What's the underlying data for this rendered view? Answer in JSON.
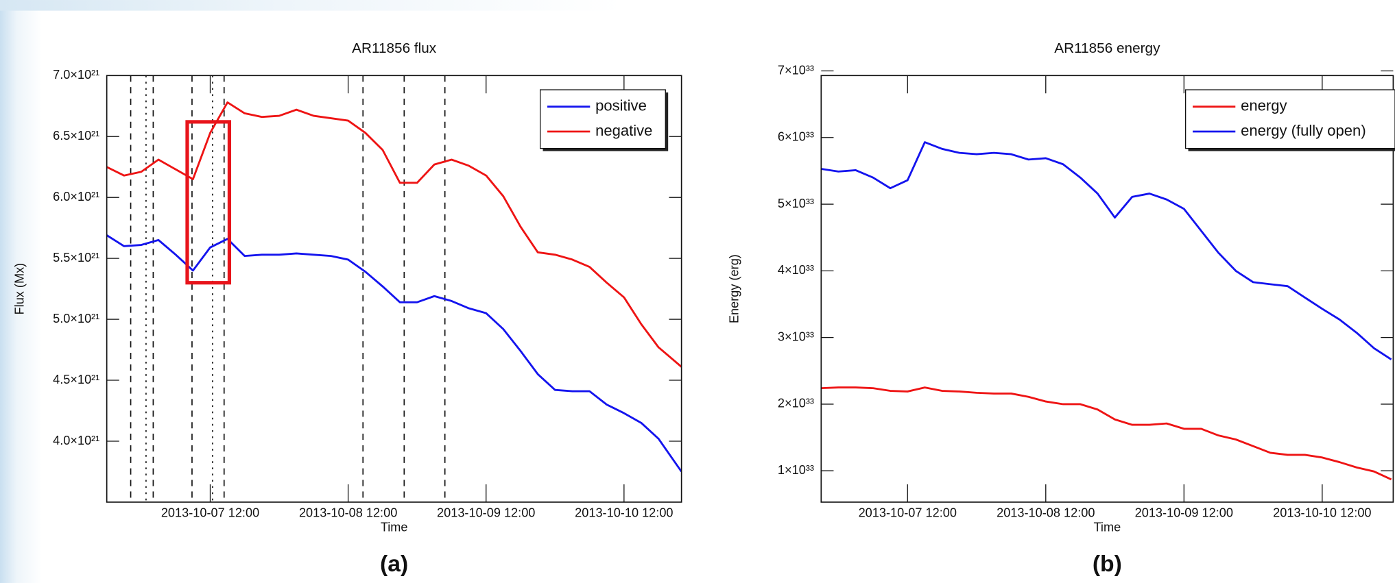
{
  "chart_data": [
    {
      "type": "line",
      "title": "AR11856 flux",
      "xlabel": "Time",
      "ylabel": "Flux (Mx)",
      "panel_label": "(a)",
      "x": [
        "2013-10-06 18:00",
        "2013-10-06 21:00",
        "2013-10-07 00:00",
        "2013-10-07 03:00",
        "2013-10-07 06:00",
        "2013-10-07 09:00",
        "2013-10-07 12:00",
        "2013-10-07 15:00",
        "2013-10-07 18:00",
        "2013-10-07 21:00",
        "2013-10-08 00:00",
        "2013-10-08 03:00",
        "2013-10-08 06:00",
        "2013-10-08 09:00",
        "2013-10-08 12:00",
        "2013-10-08 15:00",
        "2013-10-08 18:00",
        "2013-10-08 21:00",
        "2013-10-09 00:00",
        "2013-10-09 03:00",
        "2013-10-09 06:00",
        "2013-10-09 09:00",
        "2013-10-09 12:00",
        "2013-10-09 15:00",
        "2013-10-09 18:00",
        "2013-10-09 21:00",
        "2013-10-10 00:00",
        "2013-10-10 03:00",
        "2013-10-10 06:00",
        "2013-10-10 09:00",
        "2013-10-10 12:00",
        "2013-10-10 15:00",
        "2013-10-10 18:00",
        "2013-10-10 22:00"
      ],
      "series": [
        {
          "name": "positive",
          "color": "#1414ee",
          "values": [
            5.69e+21,
            5.6e+21,
            5.61e+21,
            5.65e+21,
            5.53e+21,
            5.4e+21,
            5.59e+21,
            5.66e+21,
            5.52e+21,
            5.53e+21,
            5.53e+21,
            5.54e+21,
            5.53e+21,
            5.52e+21,
            5.49e+21,
            5.39e+21,
            5.27e+21,
            5.14e+21,
            5.14e+21,
            5.19e+21,
            5.15e+21,
            5.09e+21,
            5.05e+21,
            4.92e+21,
            4.74e+21,
            4.55e+21,
            4.42e+21,
            4.41e+21,
            4.41e+21,
            4.3e+21,
            4.23e+21,
            4.15e+21,
            4.02e+21,
            3.75e+21
          ]
        },
        {
          "name": "negative",
          "color": "#ee1414",
          "values": [
            6.25e+21,
            6.18e+21,
            6.21e+21,
            6.31e+21,
            6.23e+21,
            6.15e+21,
            6.53e+21,
            6.78e+21,
            6.69e+21,
            6.66e+21,
            6.67e+21,
            6.72e+21,
            6.67e+21,
            6.65e+21,
            6.63e+21,
            6.53e+21,
            6.39e+21,
            6.12e+21,
            6.12e+21,
            6.27e+21,
            6.31e+21,
            6.26e+21,
            6.18e+21,
            6.01e+21,
            5.76e+21,
            5.55e+21,
            5.53e+21,
            5.49e+21,
            5.43e+21,
            5.3e+21,
            5.18e+21,
            4.96e+21,
            4.77e+21,
            4.61e+21
          ]
        }
      ],
      "xlim": [
        "2013-10-06 18:00",
        "2013-10-10 22:00"
      ],
      "xticks": [
        "2013-10-07 12:00",
        "2013-10-08 12:00",
        "2013-10-09 12:00",
        "2013-10-10 12:00"
      ],
      "ylim": [
        3.5e+21,
        7e+21
      ],
      "yticks": [
        {
          "value": 4e+21,
          "label": "4.0×10²¹"
        },
        {
          "value": 4.5e+21,
          "label": "4.5×10²¹"
        },
        {
          "value": 5e+21,
          "label": "5.0×10²¹"
        },
        {
          "value": 5.5e+21,
          "label": "5.5×10²¹"
        },
        {
          "value": 6e+21,
          "label": "6.0×10²¹"
        },
        {
          "value": 6.5e+21,
          "label": "6.5×10²¹"
        },
        {
          "value": 7e+21,
          "label": "7.0×10²¹"
        }
      ],
      "legend": "upper right",
      "event_lines": [
        {
          "x": "2013-10-06 22:10",
          "style": "dashed"
        },
        {
          "x": "2013-10-07 00:50",
          "style": "dotted"
        },
        {
          "x": "2013-10-07 02:05",
          "style": "dashed"
        },
        {
          "x": "2013-10-07 08:50",
          "style": "dashed"
        },
        {
          "x": "2013-10-07 12:25",
          "style": "dotted"
        },
        {
          "x": "2013-10-07 14:25",
          "style": "dashed"
        },
        {
          "x": "2013-10-08 14:35",
          "style": "dashed"
        },
        {
          "x": "2013-10-08 21:45",
          "style": "dashed"
        },
        {
          "x": "2013-10-09 04:50",
          "style": "dashed"
        }
      ],
      "highlight": {
        "x": [
          "2013-10-07 08:00",
          "2013-10-07 15:20"
        ],
        "y": [
          5.3e+21,
          6.62e+21
        ],
        "color": "#e8141b"
      }
    },
    {
      "type": "line",
      "title": "AR11856 energy",
      "xlabel": "Time",
      "ylabel": "Energy (erg)",
      "panel_label": "(b)",
      "x": [
        "2013-10-06 21:00",
        "2013-10-07 00:00",
        "2013-10-07 03:00",
        "2013-10-07 06:00",
        "2013-10-07 09:00",
        "2013-10-07 12:00",
        "2013-10-07 15:00",
        "2013-10-07 18:00",
        "2013-10-07 21:00",
        "2013-10-08 00:00",
        "2013-10-08 03:00",
        "2013-10-08 06:00",
        "2013-10-08 09:00",
        "2013-10-08 12:00",
        "2013-10-08 15:00",
        "2013-10-08 18:00",
        "2013-10-08 21:00",
        "2013-10-09 00:00",
        "2013-10-09 03:00",
        "2013-10-09 06:00",
        "2013-10-09 09:00",
        "2013-10-09 12:00",
        "2013-10-09 15:00",
        "2013-10-09 18:00",
        "2013-10-09 21:00",
        "2013-10-10 00:00",
        "2013-10-10 03:00",
        "2013-10-10 06:00",
        "2013-10-10 09:00",
        "2013-10-10 12:00",
        "2013-10-10 15:00",
        "2013-10-10 18:00",
        "2013-10-10 21:00",
        "2013-10-11 00:00"
      ],
      "series": [
        {
          "name": "energy",
          "color": "#ee1414",
          "values": [
            2.24e+33,
            2.25e+33,
            2.25e+33,
            2.24e+33,
            2.2e+33,
            2.19e+33,
            2.25e+33,
            2.2e+33,
            2.19e+33,
            2.17e+33,
            2.16e+33,
            2.16e+33,
            2.11e+33,
            2.04e+33,
            2e+33,
            2e+33,
            1.92e+33,
            1.77e+33,
            1.69e+33,
            1.69e+33,
            1.71e+33,
            1.63e+33,
            1.63e+33,
            1.53e+33,
            1.47e+33,
            1.37e+33,
            1.27e+33,
            1.24e+33,
            1.24e+33,
            1.2e+33,
            1.13e+33,
            1.05e+33,
            9.9e+32,
            8.7e+32
          ]
        },
        {
          "name": "energy (fully open)",
          "color": "#1414ee",
          "values": [
            5.53e+33,
            5.49e+33,
            5.51e+33,
            5.4e+33,
            5.24e+33,
            5.36e+33,
            5.93e+33,
            5.83e+33,
            5.77e+33,
            5.75e+33,
            5.77e+33,
            5.75e+33,
            5.67e+33,
            5.69e+33,
            5.6e+33,
            5.4e+33,
            5.16e+33,
            4.8e+33,
            5.11e+33,
            5.16e+33,
            5.07e+33,
            4.93e+33,
            4.6e+33,
            4.27e+33,
            4e+33,
            3.83e+33,
            3.8e+33,
            3.77e+33,
            3.6e+33,
            3.43e+33,
            3.27e+33,
            3.07e+33,
            2.84e+33,
            2.67e+33
          ]
        }
      ],
      "xlim": [
        "2013-10-06 21:00",
        "2013-10-11 00:20"
      ],
      "xticks": [
        "2013-10-07 12:00",
        "2013-10-08 12:00",
        "2013-10-09 12:00",
        "2013-10-10 12:00"
      ],
      "ylim": [
        5.3e+32,
        6.93e+33
      ],
      "yticks": [
        {
          "value": 1e+33,
          "label": "1×10³³"
        },
        {
          "value": 2e+33,
          "label": "2×10³³"
        },
        {
          "value": 3e+33,
          "label": "3×10³³"
        },
        {
          "value": 4e+33,
          "label": "4×10³³"
        },
        {
          "value": 5e+33,
          "label": "5×10³³"
        },
        {
          "value": 6e+33,
          "label": "6×10³³"
        },
        {
          "value": 7e+33,
          "label": "7×10³³"
        }
      ],
      "legend": "upper right"
    }
  ]
}
